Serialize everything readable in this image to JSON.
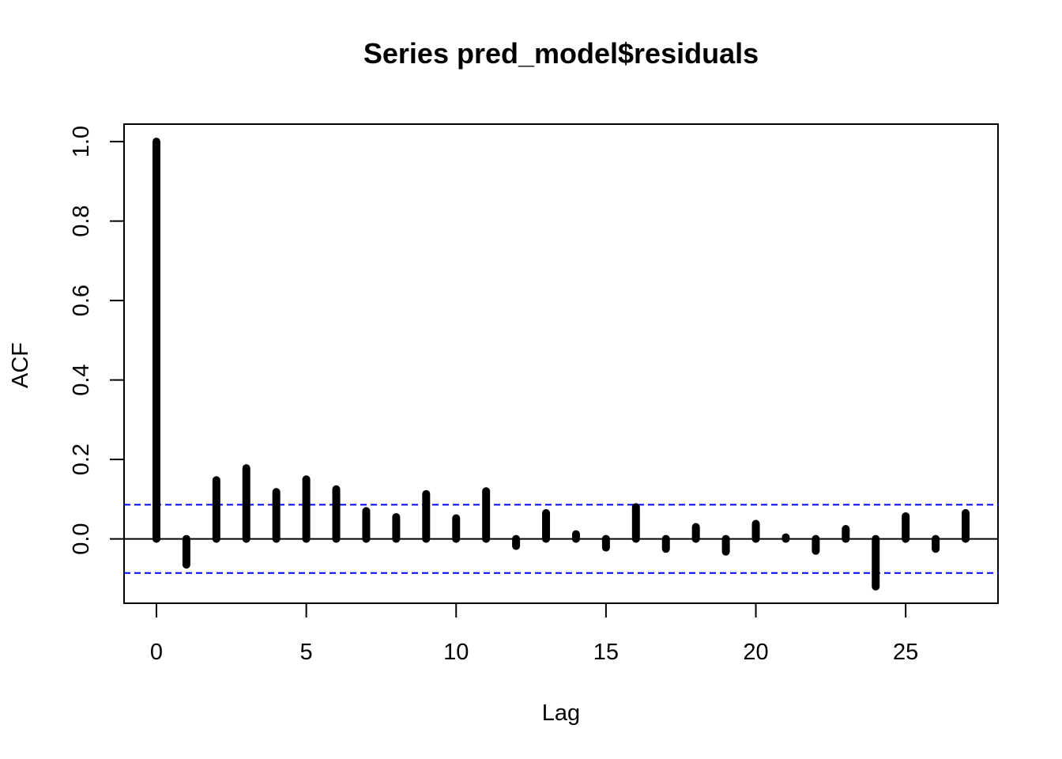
{
  "chart_data": {
    "type": "bar",
    "title": "Series  pred_model$residuals",
    "xlabel": "Lag",
    "ylabel": "ACF",
    "xlim": [
      -1.08,
      28.08
    ],
    "ylim": [
      -0.162,
      1.044
    ],
    "x_ticks": [
      0,
      5,
      10,
      15,
      20,
      25
    ],
    "x_tick_labels": [
      "0",
      "5",
      "10",
      "15",
      "20",
      "25"
    ],
    "y_ticks": [
      0.0,
      0.2,
      0.4,
      0.6,
      0.8,
      1.0
    ],
    "y_tick_labels": [
      "0.0",
      "0.2",
      "0.4",
      "0.6",
      "0.8",
      "1.0"
    ],
    "lags": [
      0,
      1,
      2,
      3,
      4,
      5,
      6,
      7,
      8,
      9,
      10,
      11,
      12,
      13,
      14,
      15,
      16,
      17,
      18,
      19,
      20,
      21,
      22,
      23,
      24,
      25,
      26,
      27
    ],
    "acf": [
      1.0,
      -0.065,
      0.148,
      0.178,
      0.118,
      0.15,
      0.125,
      0.07,
      0.055,
      0.113,
      0.052,
      0.12,
      -0.018,
      0.065,
      0.012,
      -0.022,
      0.08,
      -0.025,
      0.03,
      -0.032,
      0.038,
      0.004,
      -0.03,
      0.025,
      -0.12,
      0.057,
      -0.025,
      0.065
    ],
    "confidence_limit": 0.086,
    "colors": {
      "bars": "#000000",
      "zero_line": "#000000",
      "confidence_lines": "#0000ff"
    },
    "grid": false
  }
}
